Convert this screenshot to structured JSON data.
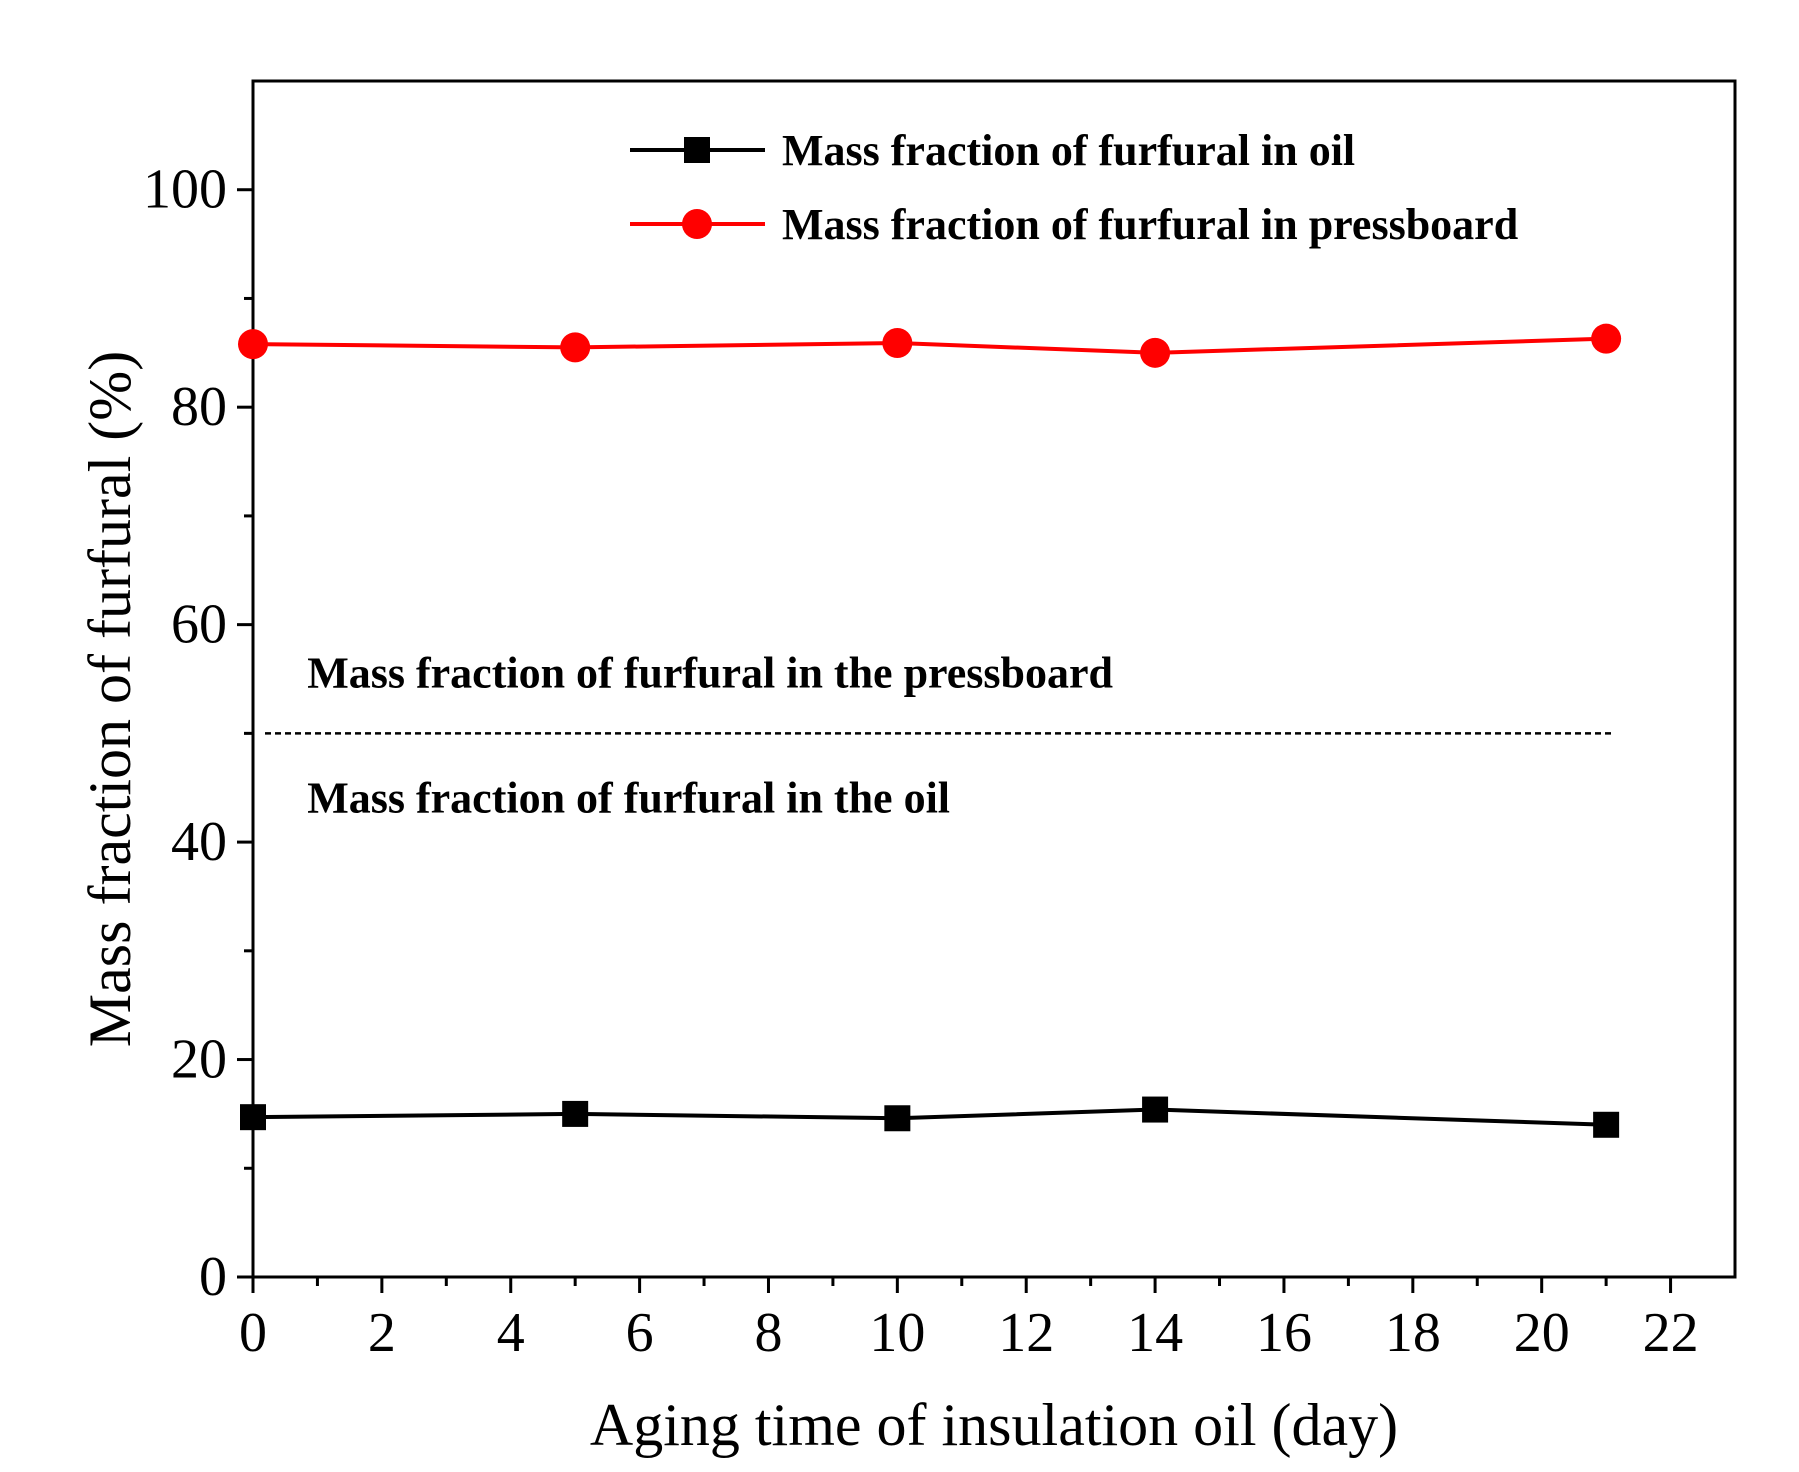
{
  "chart_data": {
    "type": "line",
    "title": "",
    "xlabel": "Aging time of insulation oil (day)",
    "ylabel": "Mass fraction of furfural (%)",
    "xlim": [
      0,
      23
    ],
    "ylim": [
      0,
      110
    ],
    "xticks": [
      0,
      2,
      4,
      6,
      8,
      10,
      12,
      14,
      16,
      18,
      20,
      22
    ],
    "yticks": [
      0,
      20,
      40,
      60,
      80,
      100
    ],
    "x": [
      0,
      5,
      10,
      14,
      21
    ],
    "series": [
      {
        "name": "Mass fraction of furfural in oil",
        "color": "#000000",
        "marker": "square",
        "values": [
          14.7,
          15.0,
          14.6,
          15.4,
          14.0
        ]
      },
      {
        "name": "Mass fraction of furfural in pressboard",
        "color": "#ff0000",
        "marker": "circle",
        "values": [
          85.8,
          85.5,
          85.9,
          85.0,
          86.3
        ]
      }
    ],
    "reference_line": {
      "y": 50,
      "x_range": [
        0,
        21
      ],
      "style": "dotted",
      "color": "#000000"
    },
    "annotations": [
      {
        "text": "Mass fraction of furfural in the pressboard",
        "x": 0.5,
        "y": 55.5
      },
      {
        "text": "Mass fraction of furfural in the oil",
        "x": 0.5,
        "y": 44
      }
    ],
    "legend_position": "top-right",
    "grid": false
  }
}
